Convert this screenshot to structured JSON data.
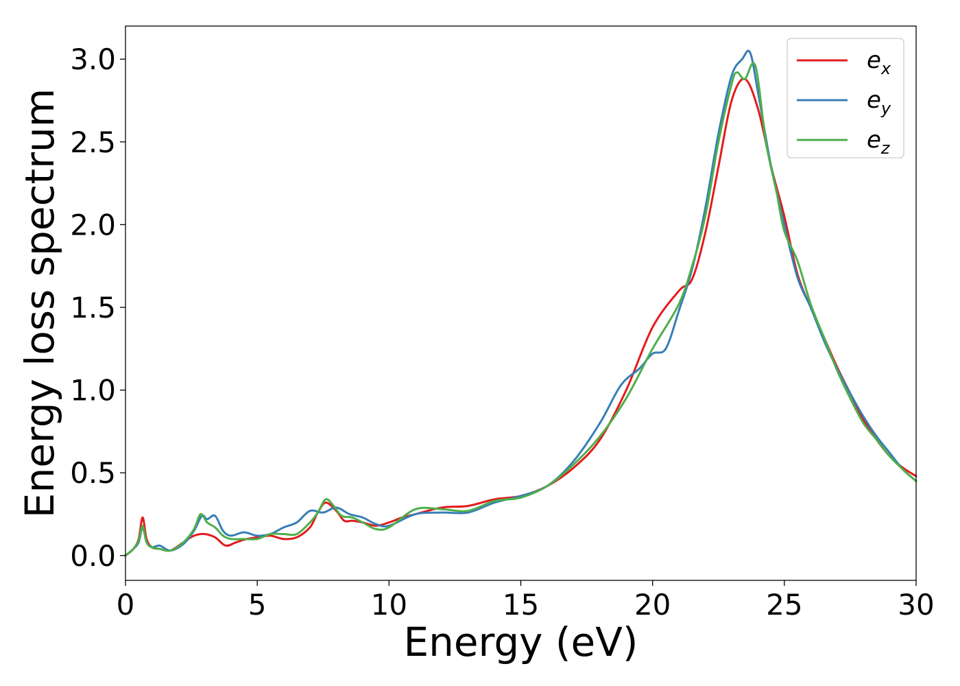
{
  "chart_data": {
    "type": "line",
    "title": "",
    "xlabel": "Energy (eV)",
    "ylabel": "Energy loss spectrum",
    "xlim": [
      0,
      30
    ],
    "ylim": [
      -0.15,
      3.2
    ],
    "xticks": [
      0,
      5,
      10,
      15,
      20,
      25,
      30
    ],
    "xtick_labels": [
      "0",
      "5",
      "10",
      "15",
      "20",
      "25",
      "30"
    ],
    "yticks": [
      0.0,
      0.5,
      1.0,
      1.5,
      2.0,
      2.5,
      3.0
    ],
    "ytick_labels": [
      "0.0",
      "0.5",
      "1.0",
      "1.5",
      "2.0",
      "2.5",
      "3.0"
    ],
    "grid": false,
    "legend_position": "top-right",
    "series": [
      {
        "name": "e",
        "subscript": "x",
        "color": "#e41a1c",
        "x": [
          0,
          0.3,
          0.5,
          0.65,
          0.8,
          1.0,
          1.3,
          1.7,
          2.2,
          2.6,
          3.0,
          3.4,
          3.8,
          4.2,
          4.6,
          5.0,
          5.5,
          6.0,
          6.5,
          7.0,
          7.3,
          7.6,
          8.0,
          8.3,
          8.6,
          9.0,
          9.5,
          10.0,
          10.5,
          11.0,
          12.0,
          13.0,
          14.0,
          15.0,
          16.0,
          17.0,
          18.0,
          19.0,
          20.0,
          21.0,
          21.5,
          22.0,
          22.5,
          23.0,
          23.5,
          24.0,
          24.5,
          25.0,
          25.5,
          26.0,
          26.5,
          27.0,
          27.5,
          28.0,
          28.5,
          29.0,
          29.5,
          30.0
        ],
        "y": [
          0.0,
          0.04,
          0.1,
          0.23,
          0.1,
          0.05,
          0.04,
          0.03,
          0.08,
          0.12,
          0.13,
          0.11,
          0.06,
          0.08,
          0.1,
          0.11,
          0.12,
          0.1,
          0.11,
          0.17,
          0.26,
          0.32,
          0.27,
          0.21,
          0.21,
          0.2,
          0.18,
          0.2,
          0.23,
          0.25,
          0.29,
          0.3,
          0.34,
          0.36,
          0.42,
          0.53,
          0.7,
          1.0,
          1.38,
          1.6,
          1.67,
          1.95,
          2.35,
          2.75,
          2.88,
          2.7,
          2.35,
          2.05,
          1.7,
          1.5,
          1.32,
          1.14,
          0.98,
          0.82,
          0.7,
          0.6,
          0.53,
          0.48
        ]
      },
      {
        "name": "e",
        "subscript": "y",
        "color": "#377eb8",
        "x": [
          0,
          0.3,
          0.5,
          0.65,
          0.8,
          1.0,
          1.3,
          1.7,
          2.2,
          2.6,
          2.9,
          3.1,
          3.4,
          3.7,
          4.0,
          4.5,
          5.0,
          5.5,
          6.0,
          6.5,
          7.0,
          7.5,
          8.0,
          8.5,
          9.0,
          9.5,
          10.0,
          11.0,
          12.0,
          13.0,
          14.0,
          15.0,
          16.0,
          17.0,
          18.0,
          18.8,
          19.5,
          20.0,
          20.5,
          21.0,
          21.5,
          22.0,
          22.5,
          23.0,
          23.4,
          23.7,
          24.0,
          24.5,
          25.0,
          25.5,
          26.0,
          26.5,
          27.0,
          27.5,
          28.0,
          28.5,
          29.0,
          29.5,
          30.0
        ],
        "y": [
          0.0,
          0.04,
          0.08,
          0.17,
          0.08,
          0.05,
          0.06,
          0.03,
          0.07,
          0.15,
          0.24,
          0.22,
          0.24,
          0.15,
          0.12,
          0.14,
          0.12,
          0.13,
          0.17,
          0.2,
          0.27,
          0.26,
          0.29,
          0.25,
          0.23,
          0.19,
          0.18,
          0.25,
          0.26,
          0.26,
          0.32,
          0.36,
          0.42,
          0.57,
          0.8,
          1.03,
          1.13,
          1.22,
          1.25,
          1.48,
          1.73,
          2.1,
          2.55,
          2.9,
          3.0,
          3.04,
          2.8,
          2.35,
          2.0,
          1.68,
          1.5,
          1.3,
          1.13,
          0.98,
          0.84,
          0.72,
          0.62,
          0.52,
          0.45
        ]
      },
      {
        "name": "e",
        "subscript": "z",
        "color": "#4daf4a",
        "x": [
          0,
          0.3,
          0.5,
          0.65,
          0.8,
          1.0,
          1.3,
          1.7,
          2.2,
          2.6,
          2.85,
          3.1,
          3.4,
          3.7,
          4.0,
          4.5,
          5.0,
          5.5,
          6.0,
          6.5,
          7.0,
          7.3,
          7.6,
          7.9,
          8.2,
          8.6,
          9.0,
          9.5,
          10.0,
          11.0,
          12.0,
          13.0,
          14.0,
          15.0,
          16.0,
          17.0,
          18.0,
          19.0,
          20.0,
          21.0,
          21.5,
          22.0,
          22.5,
          23.0,
          23.2,
          23.5,
          23.9,
          24.3,
          24.7,
          25.0,
          25.5,
          26.0,
          26.5,
          27.0,
          27.5,
          28.0,
          28.5,
          29.0,
          29.5,
          30.0
        ],
        "y": [
          0.0,
          0.04,
          0.09,
          0.18,
          0.08,
          0.05,
          0.04,
          0.03,
          0.08,
          0.16,
          0.25,
          0.2,
          0.17,
          0.12,
          0.1,
          0.1,
          0.1,
          0.13,
          0.13,
          0.13,
          0.2,
          0.26,
          0.34,
          0.3,
          0.24,
          0.23,
          0.2,
          0.16,
          0.17,
          0.28,
          0.28,
          0.27,
          0.33,
          0.35,
          0.42,
          0.55,
          0.72,
          0.95,
          1.25,
          1.52,
          1.75,
          2.05,
          2.5,
          2.85,
          2.92,
          2.88,
          2.96,
          2.5,
          2.2,
          1.96,
          1.78,
          1.52,
          1.32,
          1.12,
          0.95,
          0.8,
          0.7,
          0.6,
          0.52,
          0.45
        ]
      }
    ]
  }
}
